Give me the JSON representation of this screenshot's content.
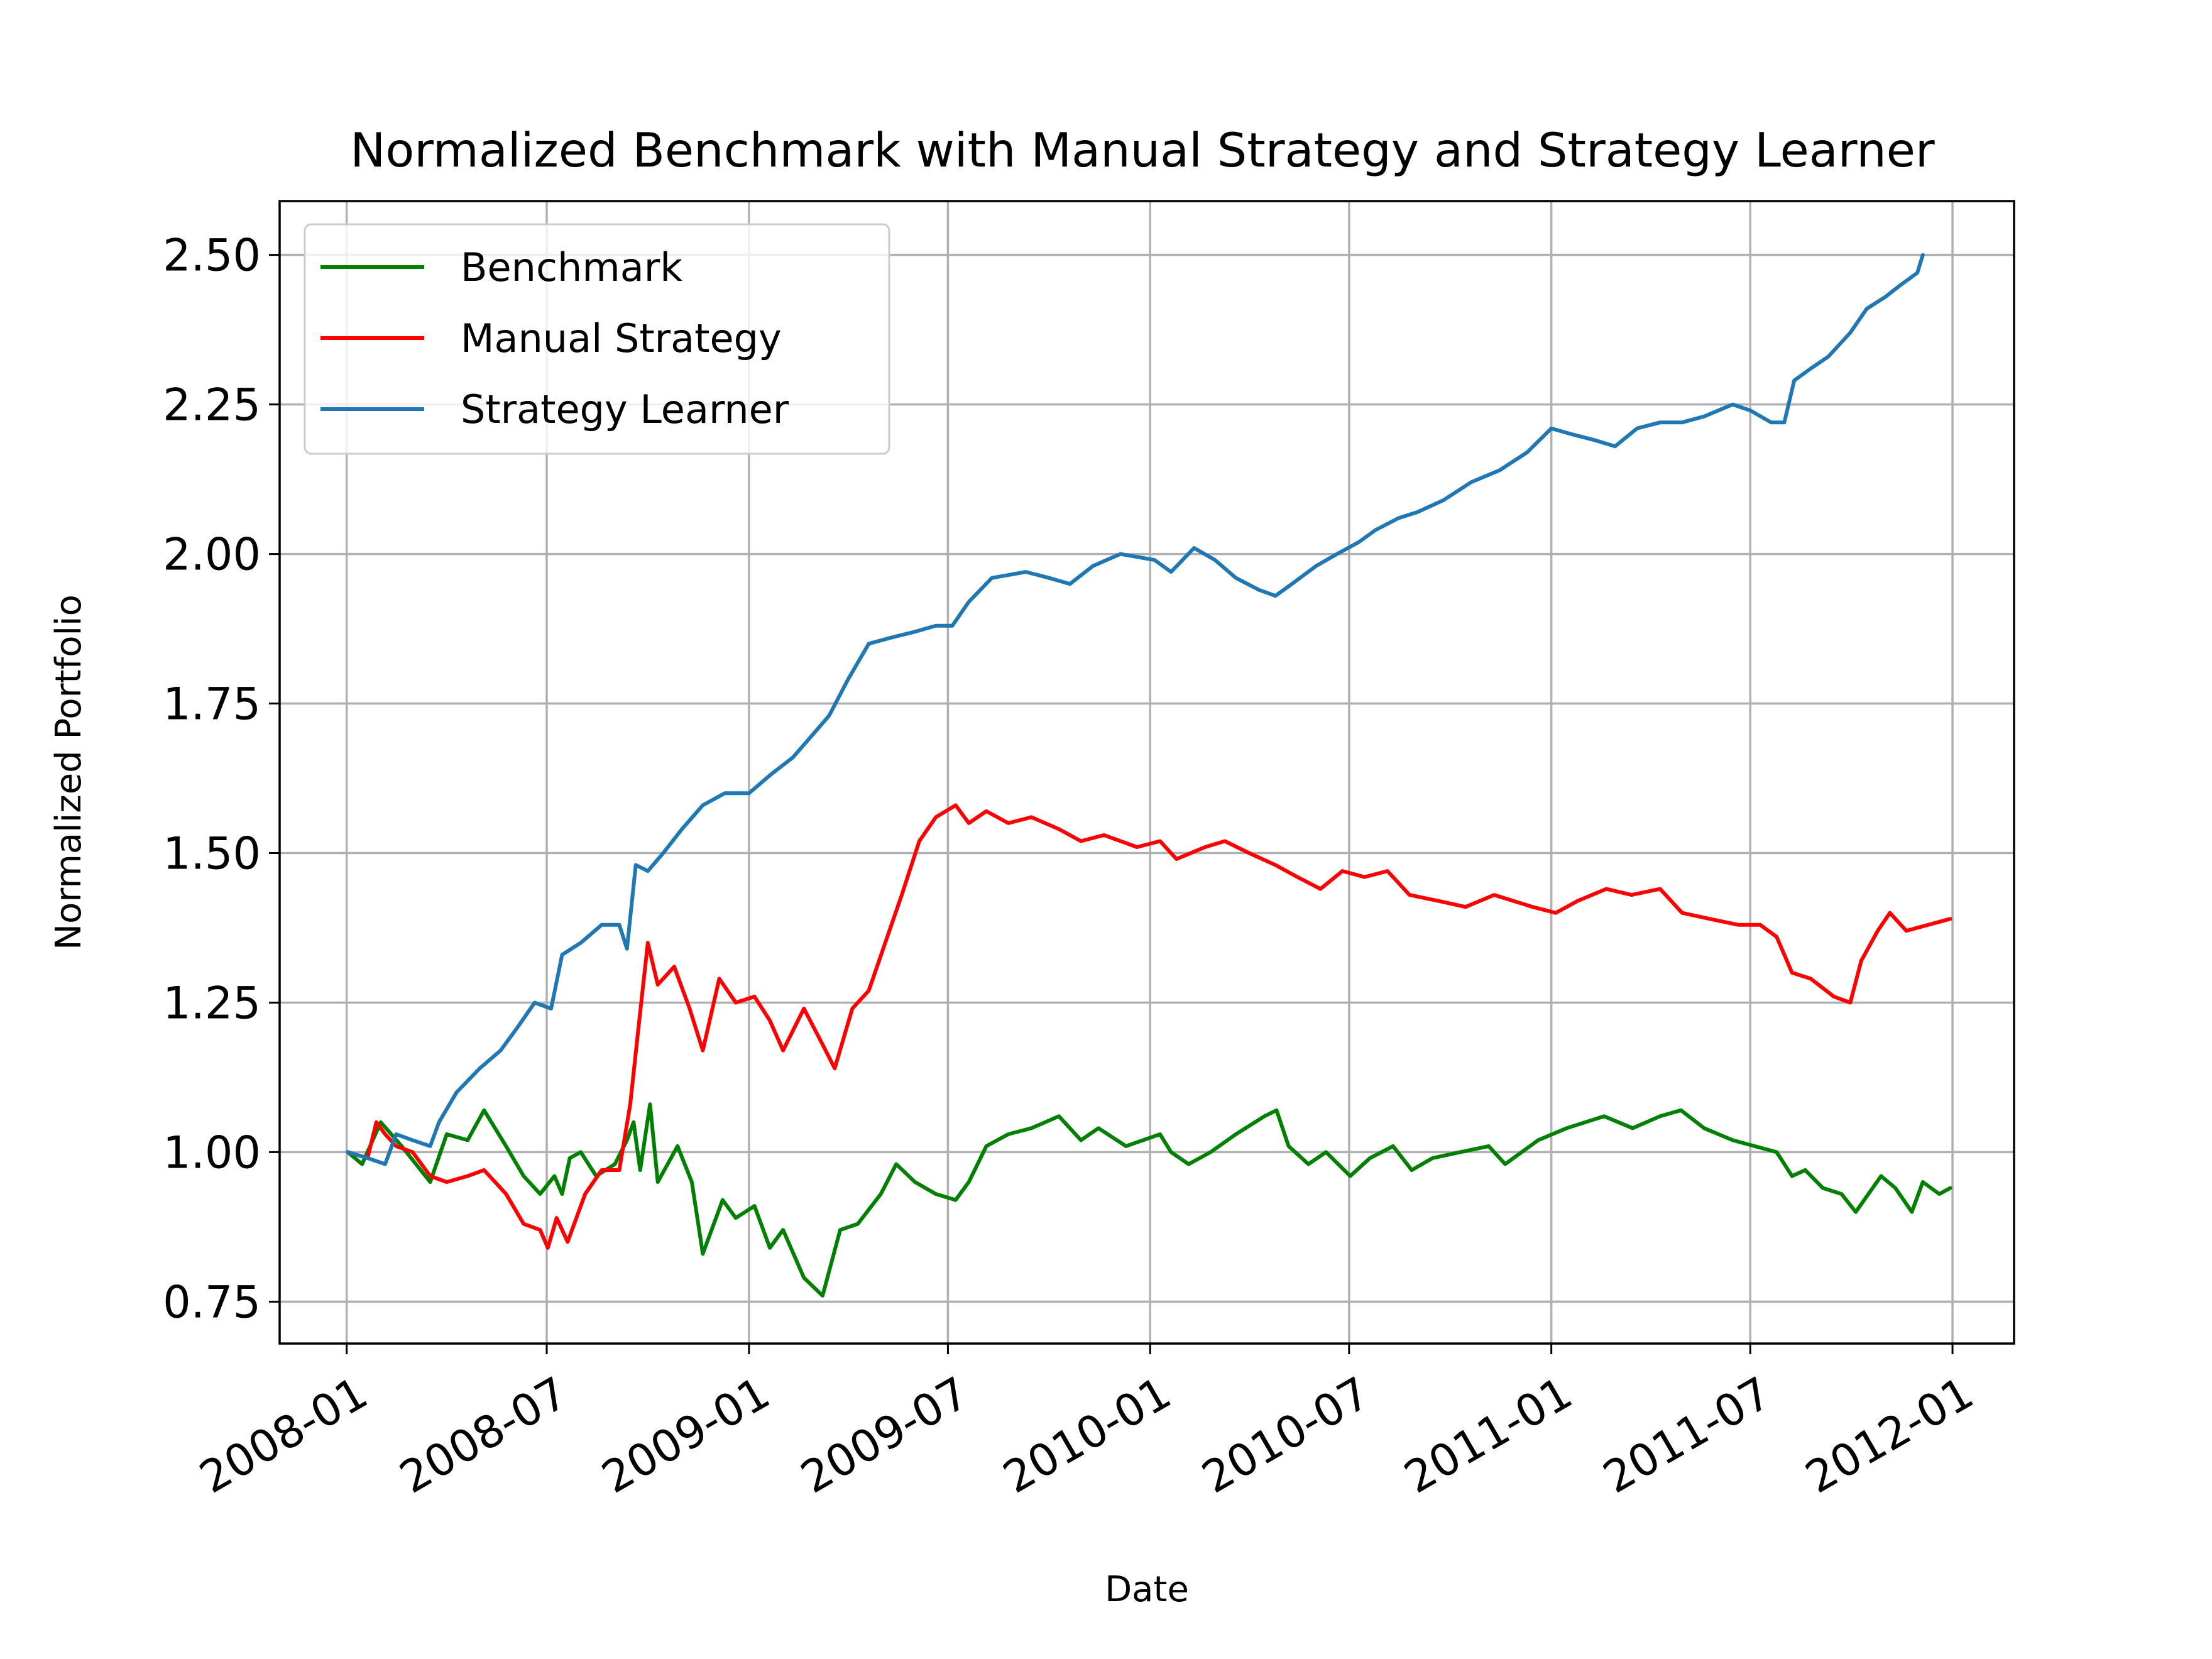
{
  "chart_data": {
    "type": "line",
    "title": "Normalized Benchmark with Manual Strategy and Strategy Learner",
    "xlabel": "Date",
    "ylabel": "Normalized Portfolio",
    "xlim": [
      "2007-11-01",
      "2012-02-26"
    ],
    "ylim": [
      0.68,
      2.59
    ],
    "grid": true,
    "legend_position": "top-left",
    "x_ticks": [
      "2008-01",
      "2008-07",
      "2009-01",
      "2009-07",
      "2010-01",
      "2010-07",
      "2011-01",
      "2011-07",
      "2012-01"
    ],
    "y_ticks": [
      "0.75",
      "1.00",
      "1.25",
      "1.50",
      "1.75",
      "2.00",
      "2.25",
      "2.50"
    ],
    "series": [
      {
        "name": "Benchmark",
        "color": "#008000",
        "points": [
          [
            "2008-01-02",
            1.0
          ],
          [
            "2008-01-15",
            0.98
          ],
          [
            "2008-02-01",
            1.05
          ],
          [
            "2008-02-20",
            1.01
          ],
          [
            "2008-03-17",
            0.95
          ],
          [
            "2008-04-01",
            1.03
          ],
          [
            "2008-04-20",
            1.02
          ],
          [
            "2008-05-05",
            1.07
          ],
          [
            "2008-05-25",
            1.01
          ],
          [
            "2008-06-10",
            0.96
          ],
          [
            "2008-06-25",
            0.93
          ],
          [
            "2008-07-08",
            0.96
          ],
          [
            "2008-07-15",
            0.93
          ],
          [
            "2008-07-22",
            0.99
          ],
          [
            "2008-08-01",
            1.0
          ],
          [
            "2008-08-15",
            0.96
          ],
          [
            "2008-09-01",
            0.98
          ],
          [
            "2008-09-12",
            1.02
          ],
          [
            "2008-09-18",
            1.05
          ],
          [
            "2008-09-24",
            0.97
          ],
          [
            "2008-10-03",
            1.08
          ],
          [
            "2008-10-10",
            0.95
          ],
          [
            "2008-10-28",
            1.01
          ],
          [
            "2008-11-10",
            0.95
          ],
          [
            "2008-11-20",
            0.83
          ],
          [
            "2008-12-08",
            0.92
          ],
          [
            "2008-12-20",
            0.89
          ],
          [
            "2009-01-06",
            0.91
          ],
          [
            "2009-01-20",
            0.84
          ],
          [
            "2009-02-01",
            0.87
          ],
          [
            "2009-02-20",
            0.79
          ],
          [
            "2009-03-09",
            0.76
          ],
          [
            "2009-03-25",
            0.87
          ],
          [
            "2009-04-10",
            0.88
          ],
          [
            "2009-05-01",
            0.93
          ],
          [
            "2009-05-15",
            0.98
          ],
          [
            "2009-06-01",
            0.95
          ],
          [
            "2009-06-20",
            0.93
          ],
          [
            "2009-07-08",
            0.92
          ],
          [
            "2009-07-20",
            0.95
          ],
          [
            "2009-08-05",
            1.01
          ],
          [
            "2009-08-25",
            1.03
          ],
          [
            "2009-09-15",
            1.04
          ],
          [
            "2009-10-10",
            1.06
          ],
          [
            "2009-10-30",
            1.02
          ],
          [
            "2009-11-15",
            1.04
          ],
          [
            "2009-12-10",
            1.01
          ],
          [
            "2010-01-10",
            1.03
          ],
          [
            "2010-01-20",
            1.0
          ],
          [
            "2010-02-05",
            0.98
          ],
          [
            "2010-02-25",
            1.0
          ],
          [
            "2010-03-20",
            1.03
          ],
          [
            "2010-04-15",
            1.06
          ],
          [
            "2010-04-26",
            1.07
          ],
          [
            "2010-05-07",
            1.01
          ],
          [
            "2010-05-25",
            0.98
          ],
          [
            "2010-06-10",
            1.0
          ],
          [
            "2010-07-02",
            0.96
          ],
          [
            "2010-07-20",
            0.99
          ],
          [
            "2010-08-10",
            1.01
          ],
          [
            "2010-08-27",
            0.97
          ],
          [
            "2010-09-15",
            0.99
          ],
          [
            "2010-10-10",
            1.0
          ],
          [
            "2010-11-05",
            1.01
          ],
          [
            "2010-11-20",
            0.98
          ],
          [
            "2010-12-20",
            1.02
          ],
          [
            "2011-01-15",
            1.04
          ],
          [
            "2011-02-18",
            1.06
          ],
          [
            "2011-03-16",
            1.04
          ],
          [
            "2011-04-10",
            1.06
          ],
          [
            "2011-04-29",
            1.07
          ],
          [
            "2011-05-20",
            1.04
          ],
          [
            "2011-06-15",
            1.02
          ],
          [
            "2011-07-05",
            1.01
          ],
          [
            "2011-07-25",
            1.0
          ],
          [
            "2011-08-08",
            0.96
          ],
          [
            "2011-08-20",
            0.97
          ],
          [
            "2011-09-05",
            0.94
          ],
          [
            "2011-09-22",
            0.93
          ],
          [
            "2011-10-05",
            0.9
          ],
          [
            "2011-10-28",
            0.96
          ],
          [
            "2011-11-10",
            0.94
          ],
          [
            "2011-11-25",
            0.9
          ],
          [
            "2011-12-05",
            0.95
          ],
          [
            "2011-12-20",
            0.93
          ],
          [
            "2011-12-30",
            0.94
          ]
        ]
      },
      {
        "name": "Manual Strategy",
        "color": "#ff0000",
        "points": [
          [
            "2008-01-02",
            1.0
          ],
          [
            "2008-01-20",
            0.99
          ],
          [
            "2008-01-28",
            1.05
          ],
          [
            "2008-02-05",
            1.03
          ],
          [
            "2008-02-15",
            1.01
          ],
          [
            "2008-03-01",
            1.0
          ],
          [
            "2008-03-17",
            0.96
          ],
          [
            "2008-04-01",
            0.95
          ],
          [
            "2008-04-20",
            0.96
          ],
          [
            "2008-05-05",
            0.97
          ],
          [
            "2008-05-25",
            0.93
          ],
          [
            "2008-06-10",
            0.88
          ],
          [
            "2008-06-25",
            0.87
          ],
          [
            "2008-07-02",
            0.84
          ],
          [
            "2008-07-10",
            0.89
          ],
          [
            "2008-07-20",
            0.85
          ],
          [
            "2008-08-05",
            0.93
          ],
          [
            "2008-08-20",
            0.97
          ],
          [
            "2008-09-05",
            0.97
          ],
          [
            "2008-09-15",
            1.08
          ],
          [
            "2008-09-22",
            1.2
          ],
          [
            "2008-10-01",
            1.35
          ],
          [
            "2008-10-10",
            1.28
          ],
          [
            "2008-10-25",
            1.31
          ],
          [
            "2008-11-08",
            1.24
          ],
          [
            "2008-11-20",
            1.17
          ],
          [
            "2008-12-05",
            1.29
          ],
          [
            "2008-12-20",
            1.25
          ],
          [
            "2009-01-06",
            1.26
          ],
          [
            "2009-01-20",
            1.22
          ],
          [
            "2009-02-01",
            1.17
          ],
          [
            "2009-02-20",
            1.24
          ],
          [
            "2009-03-09",
            1.18
          ],
          [
            "2009-03-20",
            1.14
          ],
          [
            "2009-04-05",
            1.24
          ],
          [
            "2009-04-20",
            1.27
          ],
          [
            "2009-05-05",
            1.35
          ],
          [
            "2009-05-20",
            1.43
          ],
          [
            "2009-06-05",
            1.52
          ],
          [
            "2009-06-20",
            1.56
          ],
          [
            "2009-07-08",
            1.58
          ],
          [
            "2009-07-20",
            1.55
          ],
          [
            "2009-08-05",
            1.57
          ],
          [
            "2009-08-25",
            1.55
          ],
          [
            "2009-09-15",
            1.56
          ],
          [
            "2009-10-10",
            1.54
          ],
          [
            "2009-10-30",
            1.52
          ],
          [
            "2009-11-20",
            1.53
          ],
          [
            "2009-12-20",
            1.51
          ],
          [
            "2010-01-10",
            1.52
          ],
          [
            "2010-01-25",
            1.49
          ],
          [
            "2010-02-20",
            1.51
          ],
          [
            "2010-03-10",
            1.52
          ],
          [
            "2010-04-01",
            1.5
          ],
          [
            "2010-04-25",
            1.48
          ],
          [
            "2010-05-15",
            1.46
          ],
          [
            "2010-06-05",
            1.44
          ],
          [
            "2010-06-25",
            1.47
          ],
          [
            "2010-07-15",
            1.46
          ],
          [
            "2010-08-05",
            1.47
          ],
          [
            "2010-08-25",
            1.43
          ],
          [
            "2010-09-20",
            1.42
          ],
          [
            "2010-10-15",
            1.41
          ],
          [
            "2010-11-10",
            1.43
          ],
          [
            "2010-12-15",
            1.41
          ],
          [
            "2011-01-05",
            1.4
          ],
          [
            "2011-01-25",
            1.42
          ],
          [
            "2011-02-20",
            1.44
          ],
          [
            "2011-03-15",
            1.43
          ],
          [
            "2011-04-10",
            1.44
          ],
          [
            "2011-04-30",
            1.4
          ],
          [
            "2011-05-25",
            1.39
          ],
          [
            "2011-06-20",
            1.38
          ],
          [
            "2011-07-10",
            1.38
          ],
          [
            "2011-07-25",
            1.36
          ],
          [
            "2011-08-08",
            1.3
          ],
          [
            "2011-08-25",
            1.29
          ],
          [
            "2011-09-15",
            1.26
          ],
          [
            "2011-09-30",
            1.25
          ],
          [
            "2011-10-10",
            1.32
          ],
          [
            "2011-10-25",
            1.37
          ],
          [
            "2011-11-05",
            1.4
          ],
          [
            "2011-11-20",
            1.37
          ],
          [
            "2011-12-10",
            1.38
          ],
          [
            "2011-12-30",
            1.39
          ]
        ]
      },
      {
        "name": "Strategy Learner",
        "color": "#1f77b4",
        "points": [
          [
            "2008-01-02",
            1.0
          ],
          [
            "2008-01-20",
            0.99
          ],
          [
            "2008-02-05",
            0.98
          ],
          [
            "2008-02-15",
            1.03
          ],
          [
            "2008-03-01",
            1.02
          ],
          [
            "2008-03-17",
            1.01
          ],
          [
            "2008-03-25",
            1.05
          ],
          [
            "2008-04-10",
            1.1
          ],
          [
            "2008-05-01",
            1.14
          ],
          [
            "2008-05-20",
            1.17
          ],
          [
            "2008-06-05",
            1.21
          ],
          [
            "2008-06-20",
            1.25
          ],
          [
            "2008-07-05",
            1.24
          ],
          [
            "2008-07-15",
            1.33
          ],
          [
            "2008-08-01",
            1.35
          ],
          [
            "2008-08-20",
            1.38
          ],
          [
            "2008-09-05",
            1.38
          ],
          [
            "2008-09-12",
            1.34
          ],
          [
            "2008-09-20",
            1.48
          ],
          [
            "2008-10-01",
            1.47
          ],
          [
            "2008-10-15",
            1.5
          ],
          [
            "2008-11-01",
            1.54
          ],
          [
            "2008-11-20",
            1.58
          ],
          [
            "2008-12-10",
            1.6
          ],
          [
            "2009-01-01",
            1.6
          ],
          [
            "2009-01-20",
            1.63
          ],
          [
            "2009-02-10",
            1.66
          ],
          [
            "2009-03-01",
            1.7
          ],
          [
            "2009-03-15",
            1.73
          ],
          [
            "2009-04-01",
            1.79
          ],
          [
            "2009-04-20",
            1.85
          ],
          [
            "2009-05-10",
            1.86
          ],
          [
            "2009-06-01",
            1.87
          ],
          [
            "2009-06-20",
            1.88
          ],
          [
            "2009-07-05",
            1.88
          ],
          [
            "2009-07-20",
            1.92
          ],
          [
            "2009-08-10",
            1.96
          ],
          [
            "2009-09-10",
            1.97
          ],
          [
            "2009-10-01",
            1.96
          ],
          [
            "2009-10-20",
            1.95
          ],
          [
            "2009-11-10",
            1.98
          ],
          [
            "2009-12-05",
            2.0
          ],
          [
            "2010-01-05",
            1.99
          ],
          [
            "2010-01-20",
            1.97
          ],
          [
            "2010-02-10",
            2.01
          ],
          [
            "2010-03-01",
            1.99
          ],
          [
            "2010-03-20",
            1.96
          ],
          [
            "2010-04-10",
            1.94
          ],
          [
            "2010-04-25",
            1.93
          ],
          [
            "2010-05-10",
            1.95
          ],
          [
            "2010-06-01",
            1.98
          ],
          [
            "2010-06-20",
            2.0
          ],
          [
            "2010-07-10",
            2.02
          ],
          [
            "2010-07-25",
            2.04
          ],
          [
            "2010-08-15",
            2.06
          ],
          [
            "2010-09-01",
            2.07
          ],
          [
            "2010-09-25",
            2.09
          ],
          [
            "2010-10-20",
            2.12
          ],
          [
            "2010-11-15",
            2.14
          ],
          [
            "2010-12-10",
            2.17
          ],
          [
            "2011-01-01",
            2.21
          ],
          [
            "2011-01-20",
            2.2
          ],
          [
            "2011-02-10",
            2.19
          ],
          [
            "2011-02-28",
            2.18
          ],
          [
            "2011-03-20",
            2.21
          ],
          [
            "2011-04-10",
            2.22
          ],
          [
            "2011-04-30",
            2.22
          ],
          [
            "2011-05-20",
            2.23
          ],
          [
            "2011-06-15",
            2.25
          ],
          [
            "2011-07-01",
            2.24
          ],
          [
            "2011-07-20",
            2.22
          ],
          [
            "2011-08-01",
            2.22
          ],
          [
            "2011-08-10",
            2.29
          ],
          [
            "2011-08-25",
            2.31
          ],
          [
            "2011-09-10",
            2.33
          ],
          [
            "2011-09-30",
            2.37
          ],
          [
            "2011-10-15",
            2.41
          ],
          [
            "2011-11-01",
            2.43
          ],
          [
            "2011-11-15",
            2.45
          ],
          [
            "2011-11-30",
            2.47
          ],
          [
            "2011-12-05",
            2.5
          ]
        ]
      }
    ]
  }
}
